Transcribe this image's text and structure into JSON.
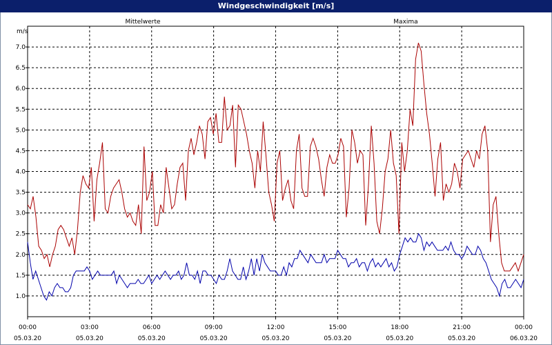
{
  "window": {
    "title": "Windgeschwindigkeit [m/s]"
  },
  "chart_data": {
    "type": "line",
    "title": "Windgeschwindigkeit [m/s]",
    "ylabel": "m/s",
    "xlabel": "",
    "ylim": [
      0.5,
      7.5
    ],
    "yticks": [
      "1.0",
      "1.5",
      "2.0",
      "2.5",
      "3.0",
      "3.5",
      "4.0",
      "4.5",
      "5.0",
      "5.5",
      "6.0",
      "6.5",
      "7.0"
    ],
    "xticks": [
      {
        "time": "00:00",
        "date": "05.03.20"
      },
      {
        "time": "03:00",
        "date": "05.03.20"
      },
      {
        "time": "06:00",
        "date": "05.03.20"
      },
      {
        "time": "09:00",
        "date": "05.03.20"
      },
      {
        "time": "12:00",
        "date": "05.03.20"
      },
      {
        "time": "15:00",
        "date": "05.03.20"
      },
      {
        "time": "18:00",
        "date": "05.03.20"
      },
      {
        "time": "21:00",
        "date": "05.03.20"
      },
      {
        "time": "00:00",
        "date": "06.03.20"
      }
    ],
    "grid": true,
    "series": [
      {
        "name": "Mittelwerte",
        "color": "#0000aa",
        "values": [
          2.3,
          1.8,
          1.4,
          1.6,
          1.4,
          1.2,
          1.0,
          0.9,
          1.1,
          1.0,
          1.2,
          1.3,
          1.2,
          1.2,
          1.1,
          1.1,
          1.2,
          1.5,
          1.6,
          1.6,
          1.6,
          1.6,
          1.7,
          1.6,
          1.4,
          1.5,
          1.6,
          1.5,
          1.5,
          1.5,
          1.5,
          1.5,
          1.6,
          1.3,
          1.5,
          1.4,
          1.3,
          1.2,
          1.3,
          1.3,
          1.3,
          1.4,
          1.3,
          1.3,
          1.4,
          1.5,
          1.3,
          1.4,
          1.5,
          1.4,
          1.5,
          1.6,
          1.5,
          1.4,
          1.5,
          1.5,
          1.6,
          1.4,
          1.5,
          1.8,
          1.5,
          1.5,
          1.4,
          1.6,
          1.3,
          1.6,
          1.6,
          1.5,
          1.5,
          1.4,
          1.3,
          1.5,
          1.4,
          1.4,
          1.6,
          1.9,
          1.6,
          1.5,
          1.4,
          1.4,
          1.7,
          1.4,
          1.6,
          1.9,
          1.5,
          1.9,
          1.6,
          2.0,
          1.8,
          1.7,
          1.6,
          1.6,
          1.6,
          1.5,
          1.5,
          1.7,
          1.5,
          1.8,
          1.7,
          1.9,
          1.9,
          2.1,
          2.0,
          1.9,
          1.8,
          2.0,
          1.9,
          1.8,
          1.8,
          1.8,
          2.0,
          1.8,
          1.9,
          1.9,
          1.9,
          2.1,
          2.0,
          1.9,
          1.9,
          1.7,
          1.8,
          1.8,
          1.9,
          1.7,
          1.8,
          1.8,
          1.6,
          1.8,
          1.9,
          1.7,
          1.8,
          1.7,
          1.8,
          1.9,
          1.7,
          1.8,
          1.6,
          1.7,
          2.0,
          2.2,
          2.4,
          2.3,
          2.4,
          2.3,
          2.3,
          2.5,
          2.4,
          2.1,
          2.3,
          2.2,
          2.3,
          2.2,
          2.1,
          2.1,
          2.1,
          2.2,
          2.1,
          2.3,
          2.1,
          2.0,
          2.0,
          1.9,
          2.0,
          2.2,
          2.1,
          2.0,
          2.0,
          2.2,
          2.1,
          1.9,
          1.8,
          1.6,
          1.4,
          1.3,
          1.2,
          1.0,
          1.3,
          1.4,
          1.2,
          1.2,
          1.3,
          1.4,
          1.3,
          1.2,
          1.4
        ]
      },
      {
        "name": "Maxima",
        "color": "#aa0000",
        "values": [
          3.2,
          3.1,
          3.4,
          2.9,
          2.2,
          2.1,
          1.9,
          2.0,
          1.7,
          2.0,
          2.2,
          2.6,
          2.7,
          2.6,
          2.4,
          2.2,
          2.4,
          2.0,
          2.6,
          3.5,
          3.9,
          3.7,
          3.6,
          4.1,
          2.8,
          3.8,
          4.2,
          4.7,
          3.1,
          3.0,
          3.4,
          3.6,
          3.7,
          3.8,
          3.5,
          3.1,
          2.9,
          3.0,
          2.8,
          2.7,
          3.2,
          2.5,
          4.6,
          3.3,
          3.5,
          4.0,
          2.7,
          2.7,
          3.2,
          3.0,
          4.1,
          3.6,
          3.1,
          3.2,
          3.7,
          4.1,
          4.2,
          3.3,
          4.5,
          4.8,
          4.4,
          4.7,
          5.1,
          4.9,
          4.3,
          5.2,
          5.3,
          4.9,
          5.4,
          4.7,
          4.7,
          5.8,
          5.0,
          5.1,
          5.6,
          4.1,
          5.6,
          5.5,
          5.2,
          4.9,
          4.5,
          4.2,
          3.6,
          4.5,
          4.0,
          5.2,
          4.4,
          3.5,
          3.2,
          2.8,
          4.2,
          4.5,
          3.3,
          3.6,
          3.8,
          3.3,
          3.1,
          4.5,
          4.9,
          3.6,
          3.4,
          3.4,
          4.6,
          4.8,
          4.6,
          4.3,
          3.8,
          3.4,
          4.1,
          4.4,
          4.2,
          4.2,
          4.4,
          4.8,
          4.6,
          2.9,
          3.6,
          5.0,
          4.7,
          4.2,
          4.5,
          4.4,
          2.7,
          3.7,
          5.1,
          4.2,
          2.8,
          2.5,
          3.1,
          4.0,
          4.3,
          5.0,
          4.2,
          3.9,
          2.5,
          4.7,
          4.0,
          4.5,
          5.5,
          5.1,
          6.7,
          7.1,
          6.9,
          6.1,
          5.4,
          4.9,
          4.2,
          3.4,
          4.3,
          4.7,
          3.3,
          3.7,
          3.5,
          3.7,
          4.2,
          4.0,
          3.6,
          4.3,
          4.4,
          4.5,
          4.3,
          4.1,
          4.5,
          4.3,
          4.9,
          5.1,
          4.5,
          2.3,
          3.2,
          3.4,
          2.5,
          1.8,
          1.6,
          1.6,
          1.6,
          1.7,
          1.8,
          1.6,
          1.8,
          2.0
        ]
      }
    ]
  }
}
